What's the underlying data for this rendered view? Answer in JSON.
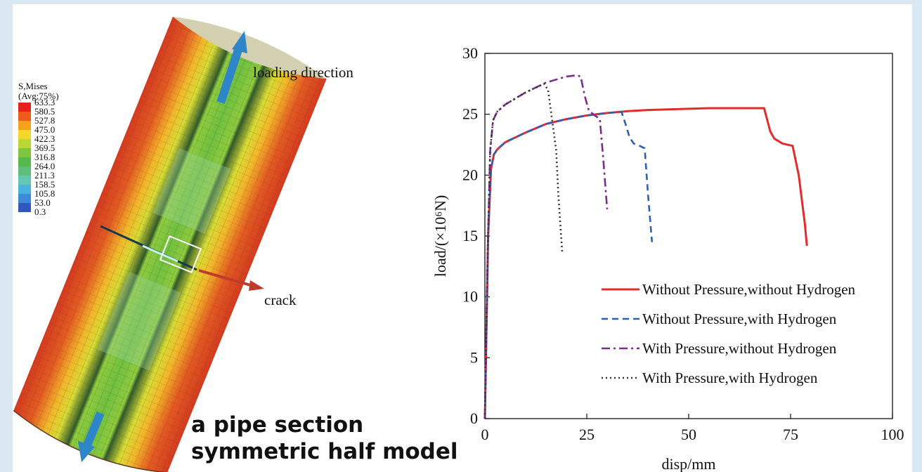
{
  "fea": {
    "colorbar_title_1": "S,Mises",
    "colorbar_title_2": "(Avg:75%)",
    "colorbar_values": [
      "633.3",
      "580.5",
      "527.8",
      "475.0",
      "422.3",
      "369.5",
      "316.8",
      "264.0",
      "211.3",
      "158.5",
      "105.8",
      "53.0",
      "0.3"
    ],
    "colorbar_colors": [
      "#e8201c",
      "#f05a1a",
      "#f6a11c",
      "#f3d72a",
      "#b9d836",
      "#7ec63c",
      "#57b84c",
      "#5fbc7a",
      "#63c7b2",
      "#4ab3dc",
      "#3c8ad8",
      "#3058c0"
    ],
    "loading_label": "loading direction",
    "crack_label": "crack",
    "arrow_color": "#2e86c9",
    "crack_color": "#c0392b"
  },
  "captions": {
    "line1": "a pipe section",
    "line2": "symmetric half model"
  },
  "chart_data": {
    "type": "line",
    "xlabel": "disp/mm",
    "ylabel": "load/(×10⁶N)",
    "xlim": [
      0,
      100
    ],
    "ylim": [
      0,
      30
    ],
    "xticks": [
      0,
      25,
      50,
      75,
      100
    ],
    "yticks": [
      0,
      5,
      10,
      15,
      20,
      25,
      30
    ],
    "legend_position": "lower-right",
    "series": [
      {
        "name": "Without Pressure,without Hydrogen",
        "color": "#e32b2b",
        "dash": "solid",
        "x": [
          0,
          0.8,
          1.5,
          2.2,
          3,
          5,
          10,
          15,
          20,
          25,
          30,
          35,
          40,
          45,
          50,
          55,
          60,
          65,
          68.5,
          69.3,
          70,
          71,
          73,
          75.5,
          77,
          78.5,
          79
        ],
        "y": [
          0,
          15,
          20.5,
          21.7,
          22.1,
          22.7,
          23.5,
          24.2,
          24.6,
          24.9,
          25.1,
          25.25,
          25.35,
          25.4,
          25.45,
          25.5,
          25.5,
          25.5,
          25.5,
          24.5,
          23.6,
          23.0,
          22.6,
          22.4,
          20.0,
          16.0,
          14.2
        ]
      },
      {
        "name": "Without Pressure,with Hydrogen",
        "color": "#2f5fb3",
        "dash": "dash",
        "x": [
          0,
          0.8,
          1.5,
          2.2,
          3,
          5,
          10,
          15,
          20,
          25,
          30,
          33.5,
          34.5,
          35.5,
          36.5,
          38,
          39.2,
          40,
          41
        ],
        "y": [
          0,
          15,
          20.5,
          21.7,
          22.1,
          22.7,
          23.5,
          24.2,
          24.6,
          24.9,
          25.1,
          25.2,
          24.2,
          23.1,
          22.6,
          22.4,
          22.2,
          18.5,
          14.5
        ]
      },
      {
        "name": "With Pressure,without Hydrogen",
        "color": "#7b2d8e",
        "dash": "dashdot",
        "x": [
          0,
          0.7,
          1.3,
          2,
          3,
          5,
          10,
          15,
          20,
          22.5,
          23.5,
          24.5,
          25.5,
          27,
          28.2,
          29,
          30
        ],
        "y": [
          0,
          14,
          22,
          24.5,
          25.2,
          25.8,
          26.8,
          27.6,
          28.1,
          28.2,
          28.1,
          26.5,
          25.3,
          24.9,
          24.6,
          21.5,
          17.2
        ]
      },
      {
        "name": "With Pressure,with Hydrogen",
        "color": "#333333",
        "dash": "dot",
        "x": [
          0,
          0.7,
          1.3,
          2,
          3,
          5,
          10,
          14.5,
          15.5,
          16.5,
          17.5,
          18,
          19
        ],
        "y": [
          0,
          14,
          22,
          24.5,
          25.2,
          25.8,
          26.8,
          27.5,
          27.0,
          24.5,
          22.0,
          18.5,
          13.5
        ]
      }
    ]
  }
}
